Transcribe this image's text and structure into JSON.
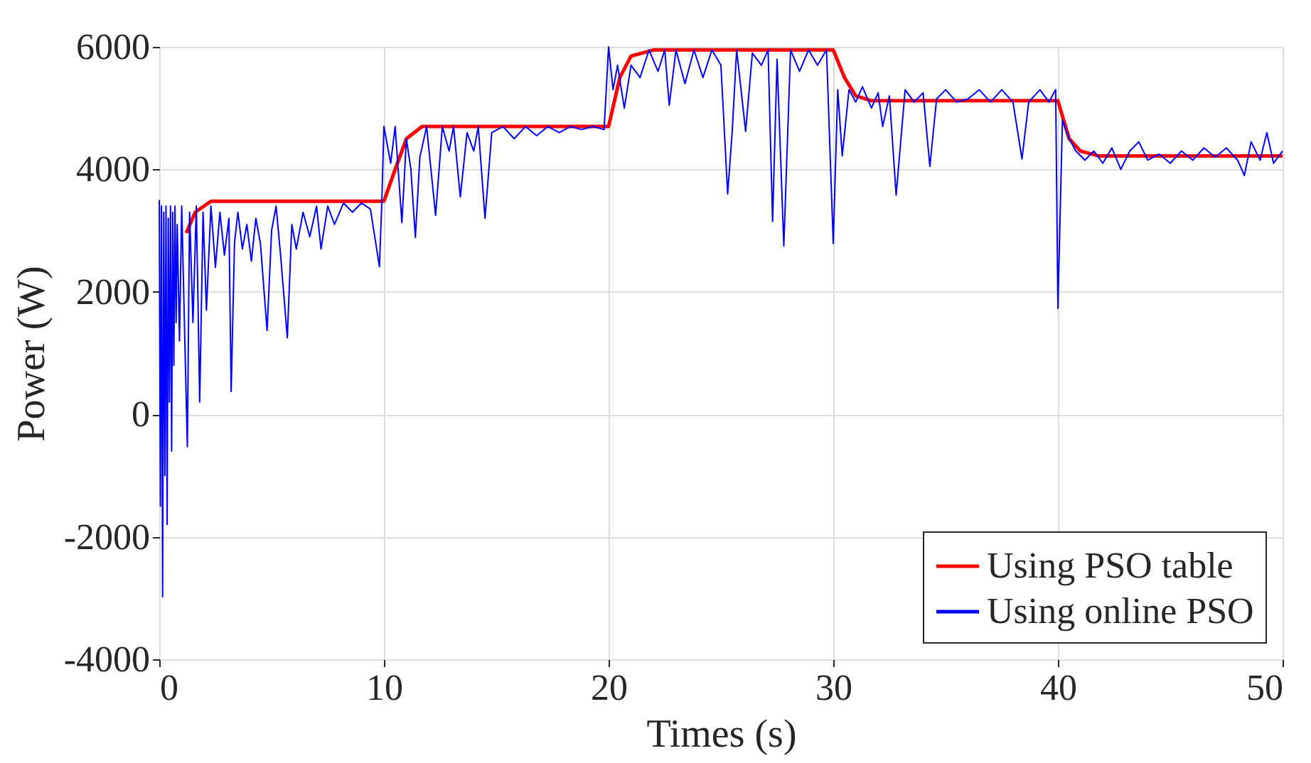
{
  "chart_data": {
    "type": "line",
    "xlabel": "Times (s)",
    "ylabel": "Power (W)",
    "xlim": [
      0,
      50
    ],
    "ylim": [
      -4000,
      6000
    ],
    "xticks": [
      0,
      10,
      20,
      30,
      40,
      50
    ],
    "yticks": [
      -4000,
      -2000,
      0,
      2000,
      4000,
      6000
    ],
    "grid": true,
    "legend": "bottom right",
    "line_style": "solid",
    "marker": "none",
    "series": [
      {
        "name": "Using PSO table",
        "color": "#ff0000",
        "x": [
          1.2,
          1.6,
          2.3,
          10,
          10.5,
          11,
          11.7,
          20,
          20.5,
          21,
          22,
          30,
          30.5,
          31,
          31.7,
          40,
          40.5,
          41,
          41.8,
          50
        ],
        "values": [
          2960,
          3300,
          3480,
          3480,
          4000,
          4500,
          4700,
          4700,
          5500,
          5850,
          5950,
          5950,
          5500,
          5200,
          5120,
          5120,
          4500,
          4300,
          4220,
          4220
        ]
      },
      {
        "name": "Using online PSO",
        "color": "#0000ff",
        "x": [
          0,
          0.05,
          0.1,
          0.15,
          0.2,
          0.25,
          0.3,
          0.35,
          0.4,
          0.45,
          0.5,
          0.55,
          0.6,
          0.65,
          0.7,
          0.75,
          0.8,
          0.9,
          1.0,
          1.1,
          1.25,
          1.35,
          1.5,
          1.65,
          1.8,
          1.95,
          2.1,
          2.3,
          2.5,
          2.7,
          2.9,
          3.1,
          3.2,
          3.35,
          3.5,
          3.7,
          3.9,
          4.1,
          4.3,
          4.5,
          4.8,
          5.0,
          5.2,
          5.4,
          5.7,
          5.9,
          6.1,
          6.4,
          6.7,
          7.0,
          7.2,
          7.5,
          7.8,
          8.2,
          8.6,
          9.0,
          9.4,
          9.8,
          9.9,
          10.0,
          10.3,
          10.5,
          10.8,
          11.0,
          11.2,
          11.4,
          11.6,
          11.9,
          12.3,
          12.6,
          12.9,
          13.1,
          13.4,
          13.7,
          14.0,
          14.2,
          14.5,
          14.8,
          15.3,
          15.8,
          16.3,
          16.8,
          17.3,
          17.8,
          18.3,
          18.8,
          19.3,
          19.8,
          20.0,
          20.2,
          20.4,
          20.7,
          21.0,
          21.4,
          21.8,
          22.2,
          22.5,
          22.7,
          23.0,
          23.4,
          23.8,
          24.2,
          24.6,
          25.0,
          25.3,
          25.5,
          25.7,
          26.1,
          26.4,
          26.8,
          27.1,
          27.3,
          27.5,
          27.8,
          28.1,
          28.5,
          28.9,
          29.3,
          29.7,
          30.0,
          30.2,
          30.4,
          30.7,
          31.0,
          31.3,
          31.7,
          32.0,
          32.2,
          32.5,
          32.8,
          33.2,
          33.6,
          34.0,
          34.3,
          34.6,
          35.0,
          35.5,
          36.0,
          36.5,
          37.0,
          37.5,
          38.0,
          38.4,
          38.7,
          39.2,
          39.6,
          39.9,
          40.0,
          40.2,
          40.5,
          40.8,
          41.2,
          41.6,
          42.0,
          42.4,
          42.8,
          43.2,
          43.6,
          44.0,
          44.5,
          45.0,
          45.5,
          46.0,
          46.5,
          47.0,
          47.5,
          48.0,
          48.3,
          48.6,
          49.0,
          49.3,
          49.6,
          50.0
        ],
        "values": [
          3500,
          -1500,
          3400,
          -2980,
          3300,
          -1000,
          3400,
          -1800,
          3200,
          200,
          3400,
          -600,
          3300,
          800,
          3400,
          1500,
          3100,
          1200,
          3400,
          1800,
          -530,
          3300,
          1500,
          3400,
          200,
          3300,
          1700,
          3400,
          2400,
          3300,
          2600,
          3200,
          370,
          2800,
          3300,
          2700,
          3100,
          2500,
          3200,
          2800,
          1370,
          3000,
          3400,
          2600,
          1250,
          3100,
          2700,
          3300,
          2900,
          3400,
          2700,
          3400,
          3100,
          3450,
          3300,
          3450,
          3350,
          2410,
          3400,
          4700,
          4100,
          4700,
          3130,
          4500,
          4000,
          2890,
          4200,
          4700,
          3250,
          4700,
          4300,
          4700,
          3550,
          4600,
          4300,
          4700,
          3200,
          4600,
          4700,
          4500,
          4700,
          4550,
          4700,
          4600,
          4700,
          4650,
          4700,
          4650,
          6000,
          5300,
          5700,
          5000,
          5700,
          5500,
          5950,
          5600,
          5950,
          5050,
          5950,
          5400,
          5950,
          5500,
          5950,
          5700,
          3600,
          4600,
          5950,
          4620,
          5900,
          5700,
          5950,
          3150,
          5800,
          2750,
          5950,
          5600,
          5950,
          5700,
          5950,
          2790,
          5300,
          4220,
          5300,
          5100,
          5350,
          5000,
          5250,
          4700,
          5200,
          3580,
          5300,
          5100,
          5250,
          4050,
          5150,
          5300,
          5100,
          5150,
          5300,
          5100,
          5300,
          5100,
          4170,
          5100,
          5300,
          5100,
          5300,
          1730,
          4800,
          4500,
          4300,
          4150,
          4300,
          4100,
          4350,
          4000,
          4300,
          4450,
          4150,
          4250,
          4100,
          4300,
          4150,
          4350,
          4200,
          4350,
          4150,
          3900,
          4450,
          4150,
          4600,
          4100,
          4300
        ]
      }
    ]
  }
}
